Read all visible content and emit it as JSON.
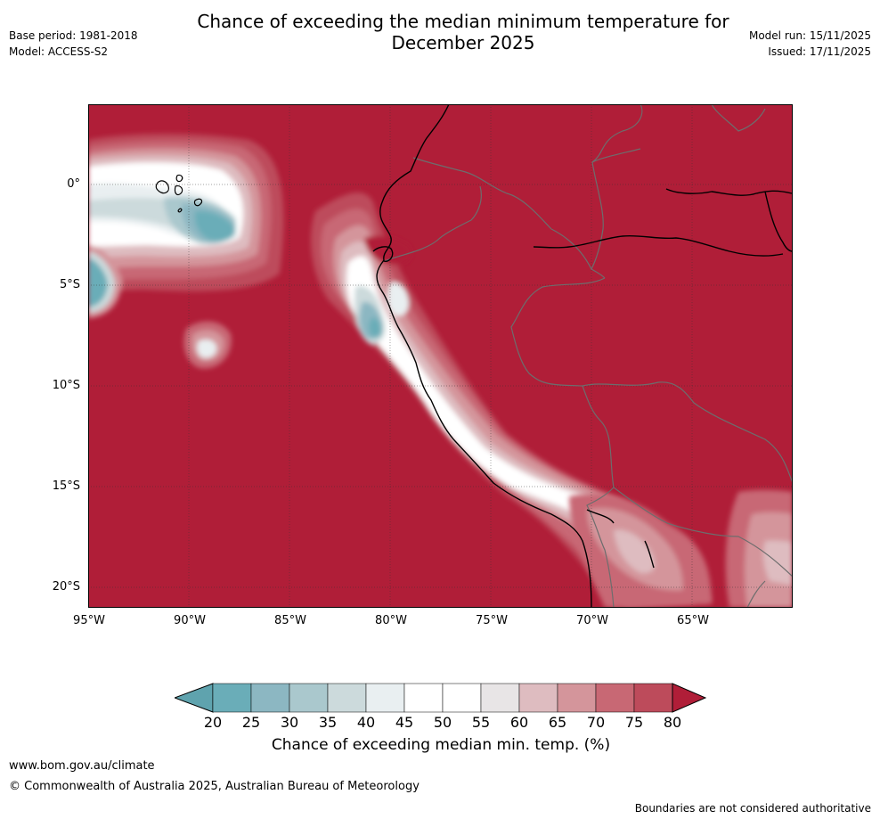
{
  "header": {
    "title_line1": "Chance of exceeding the median minimum temperature for",
    "title_line2": "December 2025",
    "base_period": "Base period: 1981-2018",
    "model": "Model: ACCESS-S2",
    "model_run": "Model run: 15/11/2025",
    "issued": "Issued: 17/11/2025"
  },
  "map": {
    "lat_labels": [
      "0°",
      "5°S",
      "10°S",
      "15°S",
      "20°S"
    ],
    "lon_labels": [
      "95°W",
      "90°W",
      "85°W",
      "80°W",
      "75°W",
      "70°W",
      "65°W"
    ],
    "lat_range": [
      -21,
      4
    ],
    "lon_range": [
      -95,
      -60
    ]
  },
  "colorbar": {
    "ticks": [
      "20",
      "25",
      "30",
      "35",
      "40",
      "45",
      "50",
      "55",
      "60",
      "65",
      "70",
      "75",
      "80"
    ],
    "label": "Chance of exceeding median min. temp. (%)",
    "colors": {
      "below_20": "#5fa3ae",
      "c20_25": "#6aadb8",
      "c25_30": "#8cb7c2",
      "c30_35": "#aac8cd",
      "c35_40": "#ccdadc",
      "c40_45": "#e9eff1",
      "c45_50": "#ffffff",
      "c50_55": "#ffffff",
      "c55_60": "#e8e5e6",
      "c60_65": "#debcc0",
      "c65_70": "#d4959b",
      "c70_75": "#c86874",
      "c75_80": "#bd4b5b",
      "above_80": "#b01e38"
    }
  },
  "footer": {
    "url": "www.bom.gov.au/climate",
    "copyright": "© Commonwealth of Australia 2025, Australian Bureau of Meteorology",
    "disclaimer": "Boundaries are not considered authoritative"
  }
}
